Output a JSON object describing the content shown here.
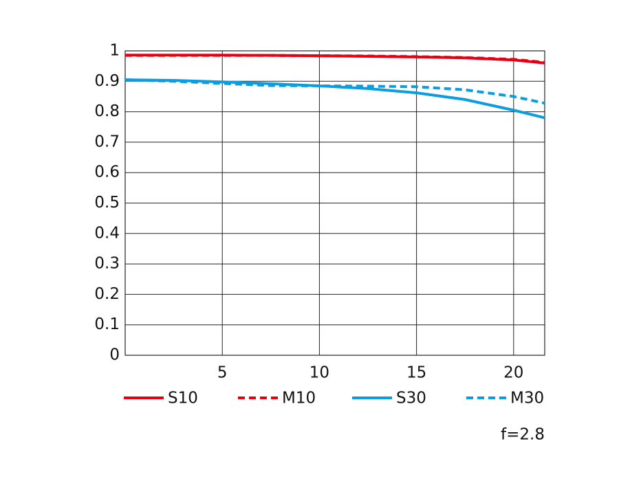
{
  "chart_data": {
    "type": "line",
    "x": [
      0,
      2.5,
      5,
      7.5,
      10,
      12.5,
      15,
      17.5,
      20,
      21.6
    ],
    "series": [
      {
        "name": "S10",
        "color": "#e60012",
        "style": "solid",
        "values": [
          0.986,
          0.986,
          0.986,
          0.985,
          0.984,
          0.982,
          0.98,
          0.977,
          0.97,
          0.96
        ]
      },
      {
        "name": "M10",
        "color": "#e60012",
        "style": "dashed",
        "values": [
          0.985,
          0.985,
          0.985,
          0.985,
          0.984,
          0.983,
          0.981,
          0.978,
          0.972,
          0.962
        ]
      },
      {
        "name": "S30",
        "color": "#0a9ee0",
        "style": "solid",
        "values": [
          0.905,
          0.903,
          0.898,
          0.892,
          0.885,
          0.876,
          0.862,
          0.84,
          0.805,
          0.78
        ]
      },
      {
        "name": "M30",
        "color": "#0a9ee0",
        "style": "dashed",
        "values": [
          0.905,
          0.9,
          0.893,
          0.886,
          0.885,
          0.884,
          0.882,
          0.872,
          0.85,
          0.828
        ]
      }
    ],
    "xlim": [
      0,
      21.6
    ],
    "xticks": [
      5,
      10,
      15,
      20
    ],
    "ylim": [
      0,
      1
    ],
    "yticks": [
      0,
      0.1,
      0.2,
      0.3,
      0.4,
      0.5,
      0.6,
      0.7,
      0.8,
      0.9,
      1
    ],
    "grid": true,
    "legend": "bottom",
    "annotation": "f=2.8"
  }
}
